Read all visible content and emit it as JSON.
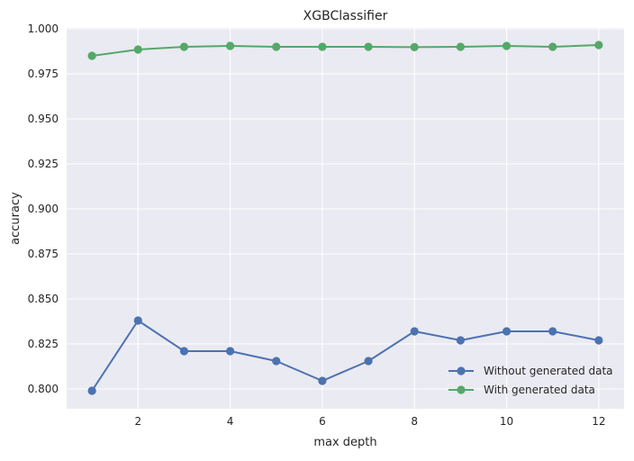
{
  "chart_data": {
    "type": "line",
    "title": "XGBClassifier",
    "xlabel": "max depth",
    "ylabel": "accuracy",
    "x": [
      1,
      2,
      3,
      4,
      5,
      6,
      7,
      8,
      9,
      10,
      11,
      12
    ],
    "xticks": [
      2,
      4,
      6,
      8,
      10,
      12
    ],
    "xlim": [
      0.45,
      12.55
    ],
    "yticks": [
      0.8,
      0.825,
      0.85,
      0.875,
      0.9,
      0.925,
      0.95,
      0.975,
      1.0
    ],
    "ytick_labels": [
      "0.800",
      "0.825",
      "0.850",
      "0.875",
      "0.900",
      "0.925",
      "0.950",
      "0.975",
      "1.000"
    ],
    "ylim": [
      0.789,
      1.0005
    ],
    "grid": true,
    "legend_position": "lower right",
    "series": [
      {
        "name": "Without generated data",
        "color": "#4c72b0",
        "marker": "circle",
        "values": [
          0.799,
          0.838,
          0.821,
          0.821,
          0.8155,
          0.8045,
          0.8155,
          0.832,
          0.827,
          0.832,
          0.832,
          0.827
        ]
      },
      {
        "name": "With generated data",
        "color": "#55a868",
        "marker": "circle",
        "values": [
          0.985,
          0.9885,
          0.99,
          0.9905,
          0.99,
          0.99,
          0.99,
          0.9898,
          0.99,
          0.9905,
          0.99,
          0.991
        ]
      }
    ]
  },
  "style": {
    "plot_background": "#eaeaf2",
    "grid_color": "#ffffff",
    "text_color": "#262626"
  }
}
